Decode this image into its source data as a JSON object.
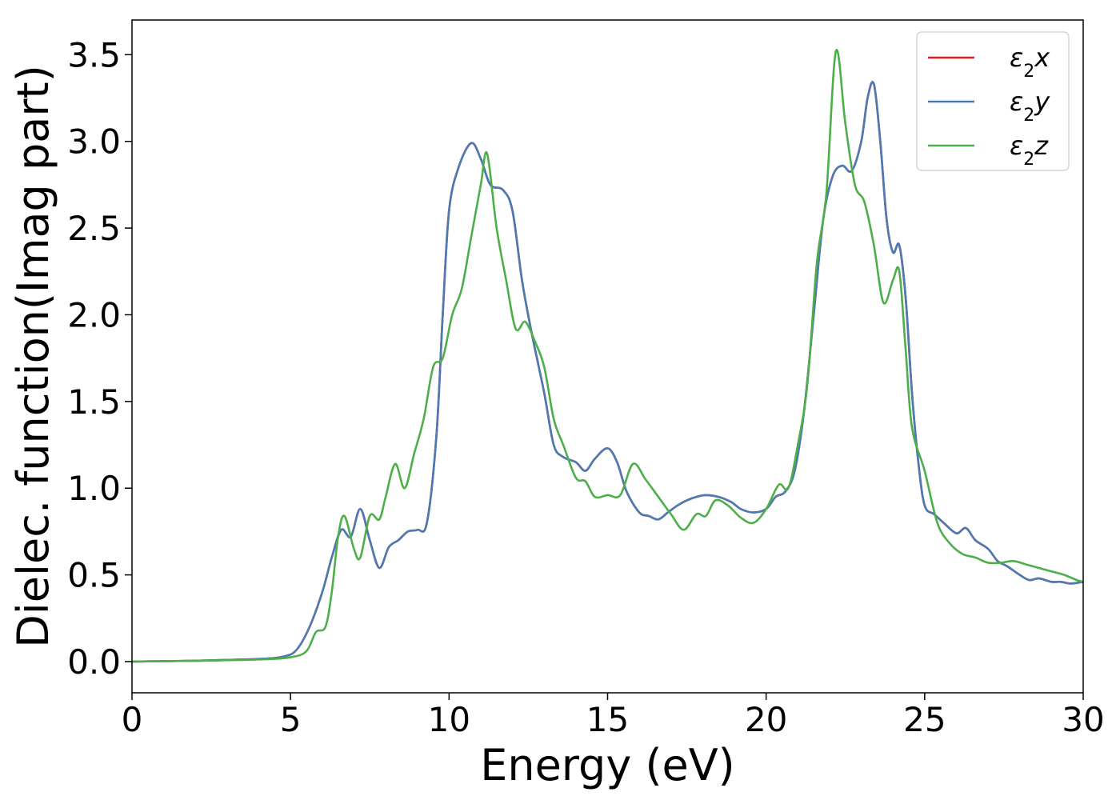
{
  "chart_data": {
    "type": "line",
    "xlabel": "Energy (eV)",
    "ylabel": "Dielec. function(Imag part)",
    "xlim": [
      0,
      30
    ],
    "ylim": [
      -0.18,
      3.7
    ],
    "xticks": [
      0,
      5,
      10,
      15,
      20,
      25,
      30
    ],
    "xtick_labels": [
      "0",
      "5",
      "10",
      "15",
      "20",
      "25",
      "30"
    ],
    "yticks": [
      0.0,
      0.5,
      1.0,
      1.5,
      2.0,
      2.5,
      3.0,
      3.5
    ],
    "ytick_labels": [
      "0.0",
      "0.5",
      "1.0",
      "1.5",
      "2.0",
      "2.5",
      "3.0",
      "3.5"
    ],
    "grid": false,
    "legend_position": "top-right",
    "series": [
      {
        "name": "ε₂x",
        "label_base": "ε",
        "label_sub": "2",
        "label_var": "x",
        "color": "#e41a1c",
        "x": [
          0,
          2,
          4,
          4.8,
          5.2,
          5.6,
          6.0,
          6.3,
          6.6,
          6.9,
          7.2,
          7.5,
          7.8,
          8.1,
          8.4,
          8.7,
          9.0,
          9.3,
          9.6,
          9.8,
          10.0,
          10.3,
          10.7,
          11.0,
          11.3,
          11.7,
          12.0,
          12.3,
          12.6,
          13.0,
          13.3,
          13.6,
          14.0,
          14.3,
          14.6,
          15.0,
          15.3,
          15.6,
          16.0,
          16.3,
          16.6,
          16.9,
          17.2,
          17.5,
          17.8,
          18.1,
          18.5,
          18.9,
          19.2,
          19.6,
          20.0,
          20.3,
          20.6,
          20.9,
          21.2,
          21.5,
          21.8,
          22.1,
          22.4,
          22.7,
          23.0,
          23.2,
          23.4,
          23.6,
          23.8,
          24.0,
          24.2,
          24.4,
          24.6,
          24.8,
          25.0,
          25.3,
          25.6,
          26.0,
          26.3,
          26.6,
          27.0,
          27.3,
          27.6,
          28.0,
          28.3,
          28.6,
          29.0,
          29.3,
          29.6,
          30.0
        ],
        "values": [
          0.0,
          0.005,
          0.015,
          0.03,
          0.07,
          0.2,
          0.4,
          0.6,
          0.76,
          0.72,
          0.88,
          0.7,
          0.54,
          0.66,
          0.7,
          0.75,
          0.76,
          0.8,
          1.3,
          2.0,
          2.6,
          2.85,
          2.99,
          2.9,
          2.75,
          2.72,
          2.6,
          2.2,
          1.9,
          1.55,
          1.25,
          1.18,
          1.15,
          1.1,
          1.17,
          1.23,
          1.15,
          0.98,
          0.86,
          0.84,
          0.82,
          0.86,
          0.9,
          0.93,
          0.95,
          0.96,
          0.95,
          0.92,
          0.88,
          0.86,
          0.88,
          0.95,
          0.98,
          1.1,
          1.45,
          2.0,
          2.55,
          2.8,
          2.86,
          2.83,
          3.0,
          3.25,
          3.33,
          3.0,
          2.55,
          2.36,
          2.4,
          2.1,
          1.55,
          1.15,
          0.9,
          0.85,
          0.8,
          0.74,
          0.77,
          0.7,
          0.65,
          0.58,
          0.55,
          0.5,
          0.47,
          0.48,
          0.46,
          0.46,
          0.45,
          0.46
        ]
      },
      {
        "name": "ε₂y",
        "label_base": "ε",
        "label_sub": "2",
        "label_var": "y",
        "color": "#4a7bb5",
        "x": [
          0,
          2,
          4,
          4.8,
          5.2,
          5.6,
          6.0,
          6.3,
          6.6,
          6.9,
          7.2,
          7.5,
          7.8,
          8.1,
          8.4,
          8.7,
          9.0,
          9.3,
          9.6,
          9.8,
          10.0,
          10.3,
          10.7,
          11.0,
          11.3,
          11.7,
          12.0,
          12.3,
          12.6,
          13.0,
          13.3,
          13.6,
          14.0,
          14.3,
          14.6,
          15.0,
          15.3,
          15.6,
          16.0,
          16.3,
          16.6,
          16.9,
          17.2,
          17.5,
          17.8,
          18.1,
          18.5,
          18.9,
          19.2,
          19.6,
          20.0,
          20.3,
          20.6,
          20.9,
          21.2,
          21.5,
          21.8,
          22.1,
          22.4,
          22.7,
          23.0,
          23.2,
          23.4,
          23.6,
          23.8,
          24.0,
          24.2,
          24.4,
          24.6,
          24.8,
          25.0,
          25.3,
          25.6,
          26.0,
          26.3,
          26.6,
          27.0,
          27.3,
          27.6,
          28.0,
          28.3,
          28.6,
          29.0,
          29.3,
          29.6,
          30.0
        ],
        "values": [
          0.0,
          0.005,
          0.015,
          0.03,
          0.07,
          0.2,
          0.4,
          0.6,
          0.76,
          0.72,
          0.88,
          0.7,
          0.54,
          0.66,
          0.7,
          0.75,
          0.76,
          0.8,
          1.3,
          2.0,
          2.6,
          2.85,
          2.99,
          2.9,
          2.75,
          2.72,
          2.6,
          2.2,
          1.9,
          1.55,
          1.25,
          1.18,
          1.15,
          1.1,
          1.17,
          1.23,
          1.15,
          0.98,
          0.86,
          0.84,
          0.82,
          0.86,
          0.9,
          0.93,
          0.95,
          0.96,
          0.95,
          0.92,
          0.88,
          0.86,
          0.88,
          0.95,
          0.98,
          1.1,
          1.45,
          2.0,
          2.55,
          2.8,
          2.86,
          2.83,
          3.0,
          3.25,
          3.33,
          3.0,
          2.55,
          2.36,
          2.4,
          2.1,
          1.55,
          1.15,
          0.9,
          0.85,
          0.8,
          0.74,
          0.77,
          0.7,
          0.65,
          0.58,
          0.55,
          0.5,
          0.47,
          0.48,
          0.46,
          0.46,
          0.45,
          0.46
        ]
      },
      {
        "name": "ε₂z",
        "label_base": "ε",
        "label_sub": "2",
        "label_var": "z",
        "color": "#4daf4a",
        "x": [
          0,
          2,
          4,
          5.0,
          5.5,
          5.8,
          6.1,
          6.3,
          6.5,
          6.7,
          7.0,
          7.2,
          7.5,
          7.8,
          8.0,
          8.3,
          8.6,
          8.9,
          9.2,
          9.5,
          9.8,
          10.1,
          10.4,
          10.7,
          11.0,
          11.2,
          11.5,
          11.8,
          12.1,
          12.4,
          12.7,
          13.0,
          13.3,
          13.6,
          14.0,
          14.3,
          14.6,
          15.0,
          15.4,
          15.8,
          16.2,
          16.6,
          17.0,
          17.4,
          17.8,
          18.1,
          18.4,
          18.8,
          19.2,
          19.6,
          20.0,
          20.4,
          20.7,
          21.0,
          21.3,
          21.6,
          21.9,
          22.2,
          22.5,
          22.8,
          23.1,
          23.4,
          23.7,
          24.0,
          24.2,
          24.4,
          24.6,
          25.0,
          25.4,
          25.8,
          26.2,
          26.6,
          27.0,
          27.4,
          27.8,
          28.2,
          28.6,
          29.0,
          29.4,
          29.8,
          30.0
        ],
        "values": [
          0.0,
          0.005,
          0.012,
          0.025,
          0.06,
          0.17,
          0.2,
          0.4,
          0.72,
          0.84,
          0.65,
          0.6,
          0.84,
          0.82,
          0.95,
          1.14,
          1.0,
          1.2,
          1.4,
          1.7,
          1.75,
          2.0,
          2.15,
          2.45,
          2.75,
          2.93,
          2.5,
          2.2,
          1.92,
          1.96,
          1.85,
          1.7,
          1.4,
          1.25,
          1.06,
          1.04,
          0.95,
          0.96,
          0.96,
          1.14,
          1.05,
          0.95,
          0.85,
          0.76,
          0.85,
          0.84,
          0.93,
          0.9,
          0.83,
          0.8,
          0.88,
          1.02,
          1.0,
          1.25,
          1.6,
          2.3,
          2.7,
          3.52,
          3.1,
          2.75,
          2.65,
          2.4,
          2.07,
          2.2,
          2.25,
          1.8,
          1.35,
          1.1,
          0.8,
          0.68,
          0.62,
          0.6,
          0.57,
          0.57,
          0.58,
          0.56,
          0.54,
          0.52,
          0.5,
          0.47,
          0.46
        ]
      }
    ]
  }
}
